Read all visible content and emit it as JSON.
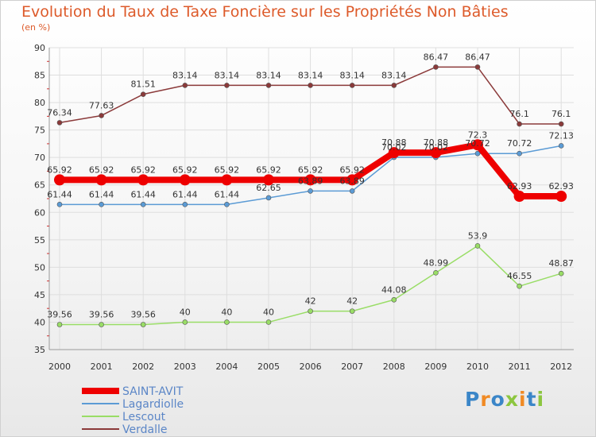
{
  "chart_data": {
    "type": "line",
    "title": "Evolution du Taux de Taxe Foncière sur les Propriétés Non Bâties",
    "ylabel": "(en %)",
    "ylim": [
      35,
      90
    ],
    "yticks": [
      35,
      40,
      45,
      50,
      55,
      60,
      65,
      70,
      75,
      80,
      85,
      90
    ],
    "categories": [
      "2000",
      "2001",
      "2002",
      "2003",
      "2004",
      "2005",
      "2006",
      "2007",
      "2008",
      "2009",
      "2010",
      "2011",
      "2012"
    ],
    "series": [
      {
        "name": "SAINT-AVIT",
        "color": "#ee0000",
        "values": [
          65.92,
          65.92,
          65.92,
          65.92,
          65.92,
          65.92,
          65.92,
          65.92,
          70.88,
          70.88,
          72.3,
          62.93,
          62.93
        ],
        "labels": [
          "65.92",
          "65.92",
          "65.92",
          "65.92",
          "65.92",
          "65.92",
          "65.92",
          "65.92",
          "70.88",
          "70.88",
          "72.3",
          "62.93",
          "62.93"
        ]
      },
      {
        "name": "Lagardiolle",
        "color": "#5b9bd5",
        "values": [
          61.44,
          61.44,
          61.44,
          61.44,
          61.44,
          62.65,
          63.89,
          63.89,
          70.02,
          70.02,
          70.72,
          70.72,
          72.13
        ],
        "labels": [
          "61.44",
          "61.44",
          "61.44",
          "61.44",
          "61.44",
          "62.65",
          "63.89",
          "63.89",
          "70.02",
          "70.02",
          "70.72",
          "70.72",
          "72.13"
        ]
      },
      {
        "name": "Lescout",
        "color": "#99dd66",
        "values": [
          39.56,
          39.56,
          39.56,
          40,
          40,
          40,
          42,
          42,
          44.08,
          48.99,
          53.9,
          46.55,
          48.87
        ],
        "labels": [
          "39.56",
          "39.56",
          "39.56",
          "40",
          "40",
          "40",
          "42",
          "42",
          "44.08",
          "48.99",
          "53.9",
          "46.55",
          "48.87"
        ]
      },
      {
        "name": "Verdalle",
        "color": "#8b3a3a",
        "values": [
          76.34,
          77.63,
          81.51,
          83.14,
          83.14,
          83.14,
          83.14,
          83.14,
          83.14,
          86.47,
          86.47,
          76.1,
          76.1
        ],
        "labels": [
          "76.34",
          "77.63",
          "81.51",
          "83.14",
          "83.14",
          "83.14",
          "83.14",
          "83.14",
          "83.14",
          "86.47",
          "86.47",
          "76.1",
          "76.1"
        ]
      }
    ],
    "legend": [
      "SAINT-AVIT",
      "Lagardiolle",
      "Lescout",
      "Verdalle"
    ]
  },
  "logo": {
    "text": "Proxiti",
    "letters": [
      "P",
      "r",
      "o",
      "x",
      "i",
      "t",
      "i"
    ],
    "colors": [
      "#3b86c8",
      "#f08a24",
      "#3b86c8",
      "#8cc63f",
      "#f08a24",
      "#3b86c8",
      "#8cc63f"
    ]
  }
}
